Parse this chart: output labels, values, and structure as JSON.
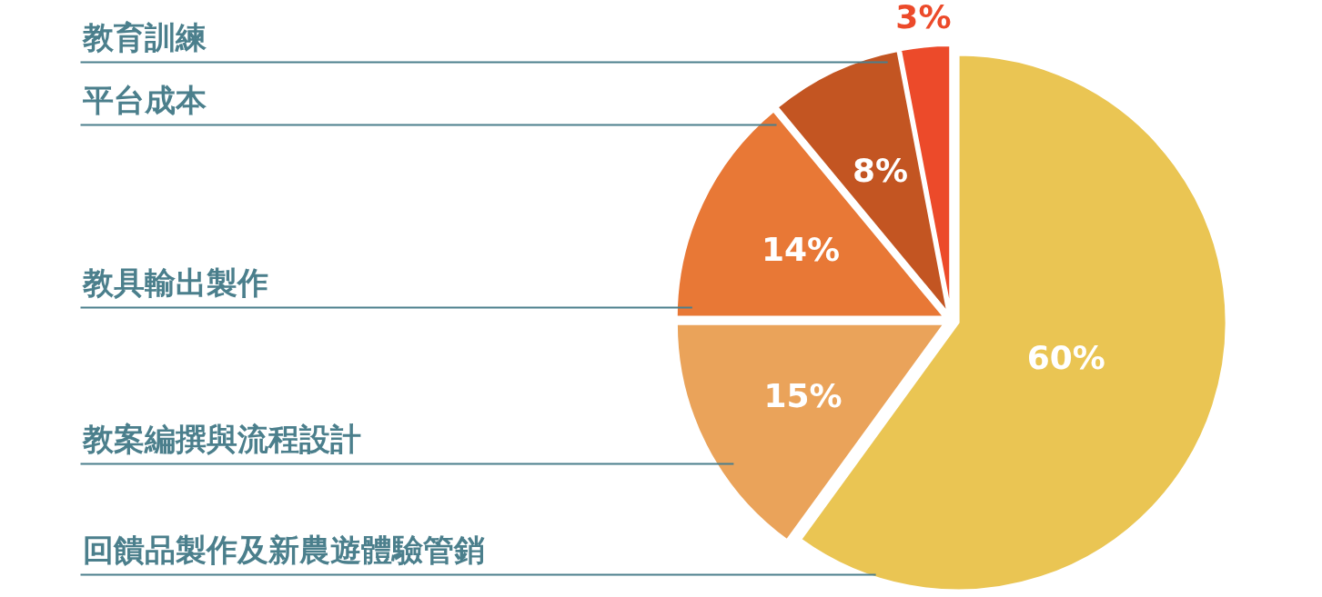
{
  "chart_data": {
    "type": "pie",
    "categories": [
      "回饋品製作及新農遊體驗管銷",
      "教案編撰與流程設計",
      "教具輸出製作",
      "平台成本",
      "教育訓練"
    ],
    "values": [
      60,
      15,
      14,
      8,
      3
    ],
    "colors": [
      "#eac553",
      "#eaa35a",
      "#e87836",
      "#c35522",
      "#ec4a2a"
    ],
    "value_labels": [
      "60%",
      "15%",
      "14%",
      "8%",
      "3%"
    ]
  }
}
